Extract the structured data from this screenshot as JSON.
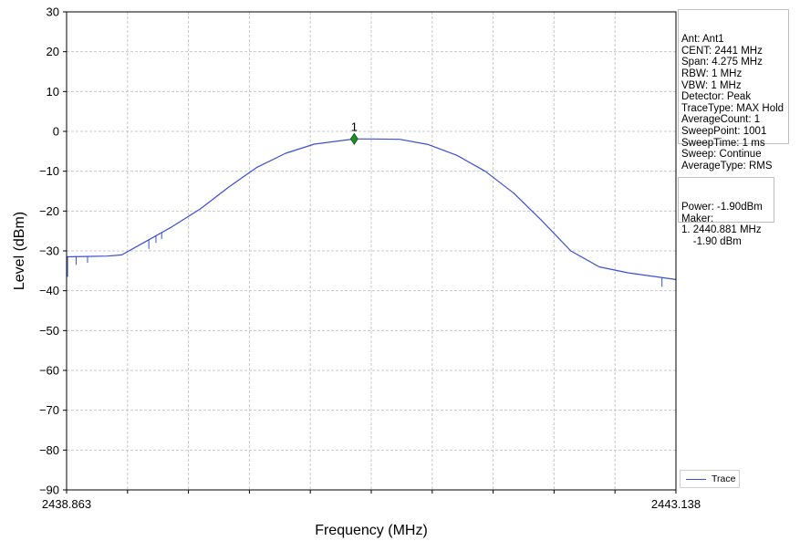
{
  "chart_data": {
    "type": "line",
    "xlabel": "Frequency (MHz)",
    "ylabel": "Level (dBm)",
    "xlim": [
      2438.863,
      2443.138
    ],
    "ylim": [
      -90,
      30
    ],
    "x_tick_labels": [
      "2438.863",
      "2443.138"
    ],
    "y_ticks": [
      30,
      20,
      10,
      0,
      -10,
      -20,
      -30,
      -40,
      -50,
      -60,
      -70,
      -80,
      -90
    ],
    "y_tick_labels": [
      "30",
      "20",
      "10",
      "0",
      "−10",
      "−20",
      "−30",
      "−40",
      "−50",
      "−60",
      "−70",
      "−80",
      "−90"
    ],
    "x_minor_gridlines": 10,
    "grid": true,
    "legend_position": "bottom-right",
    "series": [
      {
        "name": "Trace",
        "color": "#3a4fd6",
        "points": [
          [
            2438.863,
            -31.5
          ],
          [
            2439.0,
            -31.4
          ],
          [
            2439.15,
            -31.3
          ],
          [
            2439.25,
            -31.0
          ],
          [
            2439.4,
            -28.0
          ],
          [
            2439.6,
            -24.0
          ],
          [
            2439.8,
            -19.5
          ],
          [
            2440.0,
            -14.0
          ],
          [
            2440.2,
            -9.0
          ],
          [
            2440.4,
            -5.5
          ],
          [
            2440.6,
            -3.2
          ],
          [
            2440.881,
            -1.9
          ],
          [
            2441.0,
            -1.9
          ],
          [
            2441.2,
            -2.0
          ],
          [
            2441.4,
            -3.3
          ],
          [
            2441.6,
            -6.0
          ],
          [
            2441.8,
            -10.0
          ],
          [
            2442.0,
            -15.5
          ],
          [
            2442.2,
            -22.5
          ],
          [
            2442.4,
            -30.0
          ],
          [
            2442.6,
            -34.0
          ],
          [
            2442.8,
            -35.5
          ],
          [
            2443.0,
            -36.5
          ],
          [
            2443.138,
            -37.2
          ]
        ],
        "dips": [
          [
            2438.87,
            -36.5
          ],
          [
            2438.93,
            -33.5
          ],
          [
            2439.01,
            -33.0
          ],
          [
            2439.44,
            -29.5
          ],
          [
            2439.49,
            -28.0
          ],
          [
            2439.53,
            -27.0
          ],
          [
            2442.86,
            -36.0
          ],
          [
            2443.04,
            -39.0
          ]
        ]
      }
    ],
    "marker": {
      "label": "1",
      "x": 2440.881,
      "y": -1.9,
      "color": "#1f8a2a"
    }
  },
  "info_panel": {
    "lines": [
      "Ant: Ant1",
      "CENT: 2441 MHz",
      "Span: 4.275 MHz",
      "RBW: 1 MHz",
      "VBW: 1 MHz",
      "Detector: Peak",
      "TraceType: MAX Hold",
      "AverageCount: 1",
      "SweepPoint: 1001",
      "SweepTime: 1 ms",
      "Sweep: Continue",
      "AverageType: RMS"
    ]
  },
  "marker_panel": {
    "lines": [
      "Power: -1.90dBm",
      "Maker:",
      "1. 2440.881 MHz",
      "    -1.90 dBm"
    ]
  },
  "legend": {
    "label": "Trace"
  }
}
